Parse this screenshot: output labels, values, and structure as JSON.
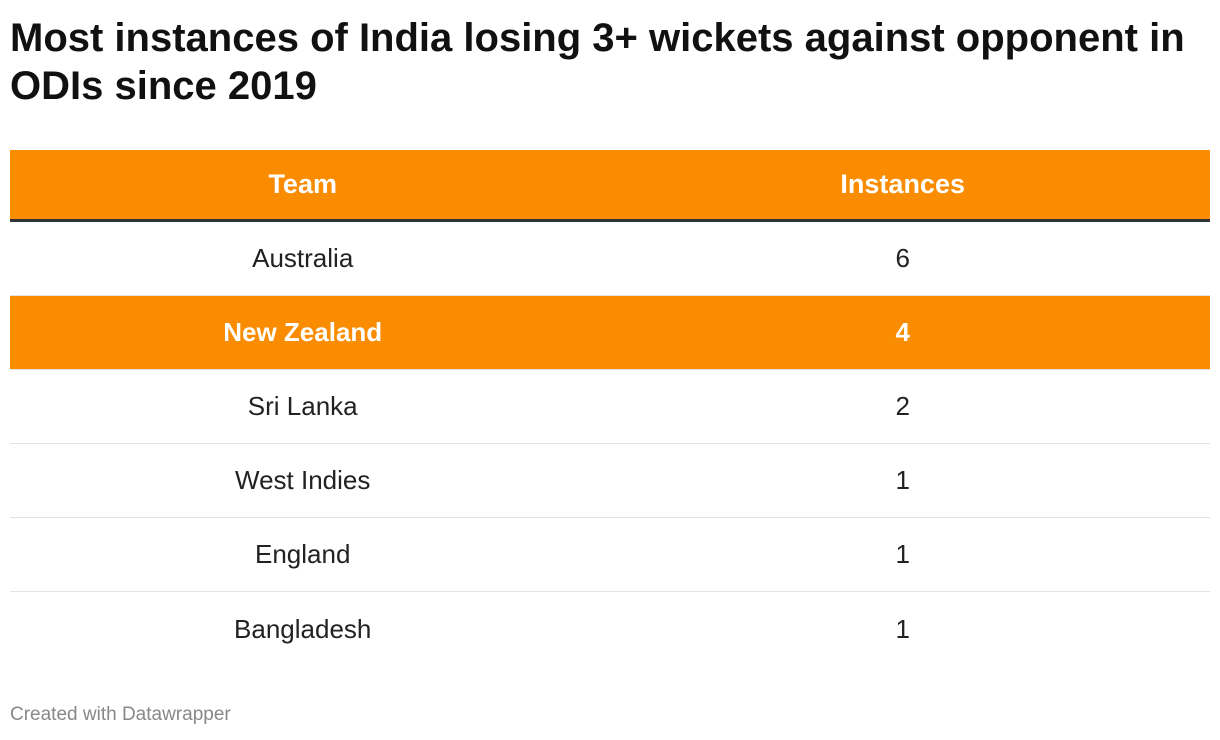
{
  "title": "Most instances of India losing 3+ wickets against opponent in ODIs since 2019",
  "footer": "Created with Datawrapper",
  "colors": {
    "accent": "#f98c00",
    "header_rule": "#333333",
    "row_divider": "#e3e3e3",
    "footer_text": "#888888"
  },
  "chart_data": {
    "type": "table",
    "title": "Most instances of India losing 3+ wickets against opponent in ODIs since 2019",
    "columns": [
      "Team",
      "Instances"
    ],
    "rows": [
      {
        "team": "Australia",
        "instances": "6",
        "highlight": false
      },
      {
        "team": "New Zealand",
        "instances": "4",
        "highlight": true
      },
      {
        "team": "Sri Lanka",
        "instances": "2",
        "highlight": false
      },
      {
        "team": "West Indies",
        "instances": "1",
        "highlight": false
      },
      {
        "team": "England",
        "instances": "1",
        "highlight": false
      },
      {
        "team": "Bangladesh",
        "instances": "1",
        "highlight": false
      }
    ]
  }
}
